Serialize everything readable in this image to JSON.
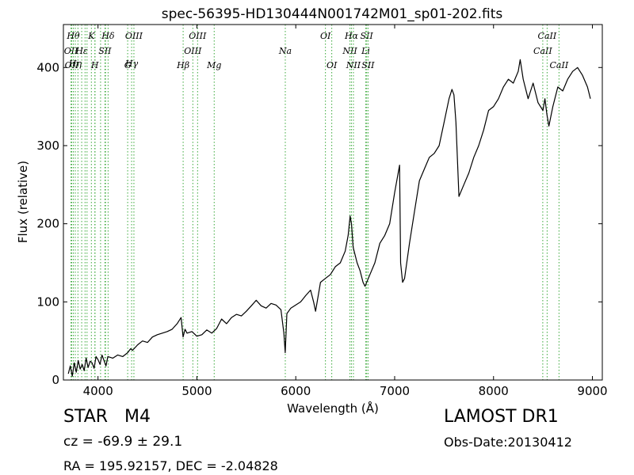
{
  "chart_data": {
    "type": "line",
    "title": "spec-56395-HD130444N001742M01_sp01-202.fits",
    "xlabel": "Wavelength (Å)",
    "ylabel": "Flux (relative)",
    "xlim": [
      3650,
      9100
    ],
    "ylim": [
      0,
      455
    ],
    "xticks": [
      4000,
      5000,
      6000,
      7000,
      8000,
      9000
    ],
    "yticks": [
      0,
      100,
      200,
      300,
      400
    ],
    "grid": false,
    "legend": "none",
    "line_color": "#000000",
    "marker_line_color": "#3aa83a",
    "series": [
      {
        "x": [
          3700,
          3720,
          3740,
          3760,
          3780,
          3800,
          3820,
          3840,
          3860,
          3880,
          3900,
          3920,
          3940,
          3960,
          3980,
          4000,
          4020,
          4040,
          4060,
          4080,
          4100,
          4150,
          4200,
          4250,
          4300,
          4330,
          4350,
          4400,
          4450,
          4500,
          4550,
          4600,
          4650,
          4700,
          4750,
          4800,
          4840,
          4860,
          4880,
          4900,
          4950,
          5000,
          5050,
          5100,
          5150,
          5200,
          5250,
          5300,
          5350,
          5400,
          5450,
          5500,
          5550,
          5600,
          5650,
          5700,
          5750,
          5800,
          5850,
          5880,
          5893,
          5910,
          5950,
          6000,
          6050,
          6100,
          6150,
          6180,
          6200,
          6250,
          6300,
          6350,
          6400,
          6450,
          6500,
          6530,
          6550,
          6563,
          6580,
          6600,
          6620,
          6650,
          6680,
          6700,
          6750,
          6800,
          6850,
          6900,
          6950,
          7000,
          7050,
          7060,
          7080,
          7100,
          7150,
          7200,
          7250,
          7300,
          7350,
          7400,
          7450,
          7500,
          7550,
          7580,
          7600,
          7620,
          7650,
          7700,
          7750,
          7800,
          7850,
          7900,
          7950,
          8000,
          8050,
          8100,
          8150,
          8200,
          8250,
          8270,
          8300,
          8350,
          8400,
          8450,
          8500,
          8520,
          8540,
          8560,
          8600,
          8650,
          8700,
          8750,
          8800,
          8850,
          8900,
          8950,
          8980
        ],
        "y": [
          8,
          18,
          5,
          22,
          10,
          25,
          14,
          20,
          12,
          28,
          16,
          24,
          22,
          15,
          30,
          26,
          20,
          32,
          25,
          18,
          30,
          28,
          32,
          30,
          35,
          40,
          38,
          45,
          50,
          48,
          55,
          58,
          60,
          62,
          65,
          72,
          80,
          55,
          65,
          60,
          62,
          56,
          58,
          64,
          60,
          66,
          78,
          72,
          80,
          84,
          82,
          88,
          95,
          102,
          95,
          92,
          98,
          96,
          90,
          60,
          35,
          85,
          92,
          96,
          100,
          108,
          115,
          100,
          88,
          125,
          130,
          135,
          145,
          150,
          165,
          185,
          210,
          200,
          170,
          160,
          150,
          140,
          125,
          120,
          135,
          150,
          175,
          185,
          200,
          240,
          275,
          150,
          125,
          130,
          175,
          215,
          255,
          270,
          285,
          290,
          300,
          330,
          360,
          372,
          365,
          330,
          235,
          250,
          265,
          285,
          300,
          320,
          345,
          350,
          360,
          375,
          385,
          380,
          395,
          410,
          385,
          360,
          380,
          355,
          345,
          360,
          340,
          325,
          350,
          375,
          370,
          385,
          395,
          400,
          390,
          375,
          360
        ]
      }
    ],
    "line_markers": [
      {
        "x": 3727,
        "label": "OII",
        "row": 1
      },
      {
        "x": 3734,
        "label": "OII",
        "row": 3
      },
      {
        "x": 3750,
        "label": "Hθ",
        "row": 0
      },
      {
        "x": 3770,
        "label": "Hη",
        "row": 2
      },
      {
        "x": 3797,
        "label": "",
        "row": -1
      },
      {
        "x": 3835,
        "label": "Hε",
        "row": 1
      },
      {
        "x": 3869,
        "label": "",
        "row": -1
      },
      {
        "x": 3889,
        "label": "",
        "row": -1
      },
      {
        "x": 3933,
        "label": "K",
        "row": 0
      },
      {
        "x": 3968,
        "label": "H",
        "row": 3
      },
      {
        "x": 3970,
        "label": "",
        "row": -1
      },
      {
        "x": 4026,
        "label": "",
        "row": -1
      },
      {
        "x": 4070,
        "label": "SII",
        "row": 1
      },
      {
        "x": 4076,
        "label": "",
        "row": -1
      },
      {
        "x": 4102,
        "label": "Hδ",
        "row": 0
      },
      {
        "x": 4300,
        "label": "G",
        "row": 3
      },
      {
        "x": 4340,
        "label": "Hγ",
        "row": 2
      },
      {
        "x": 4363,
        "label": "OIII",
        "row": 0
      },
      {
        "x": 4861,
        "label": "Hβ",
        "row": 3
      },
      {
        "x": 4959,
        "label": "OIII",
        "row": 1
      },
      {
        "x": 5007,
        "label": "OIII",
        "row": 0
      },
      {
        "x": 5175,
        "label": "Mg",
        "row": 3
      },
      {
        "x": 5894,
        "label": "Na",
        "row": 1
      },
      {
        "x": 6300,
        "label": "OI",
        "row": 0
      },
      {
        "x": 6364,
        "label": "OI",
        "row": 3
      },
      {
        "x": 6548,
        "label": "NII",
        "row": 1
      },
      {
        "x": 6563,
        "label": "Hα",
        "row": 0
      },
      {
        "x": 6583,
        "label": "NII",
        "row": 3
      },
      {
        "x": 6708,
        "label": "Li",
        "row": 1
      },
      {
        "x": 6717,
        "label": "SII",
        "row": 0
      },
      {
        "x": 6731,
        "label": "SII",
        "row": 3
      },
      {
        "x": 8498,
        "label": "CaII",
        "row": 1
      },
      {
        "x": 8542,
        "label": "CaII",
        "row": 0
      },
      {
        "x": 8662,
        "label": "CaII",
        "row": 3
      }
    ]
  },
  "info": {
    "object_class": "STAR",
    "subclass": "M4",
    "redshift": "cz = -69.9 ± 29.1",
    "survey": "LAMOST DR1",
    "obs_date": "Obs-Date:20130412",
    "coords": "RA = 195.92157, DEC = -2.04828"
  }
}
